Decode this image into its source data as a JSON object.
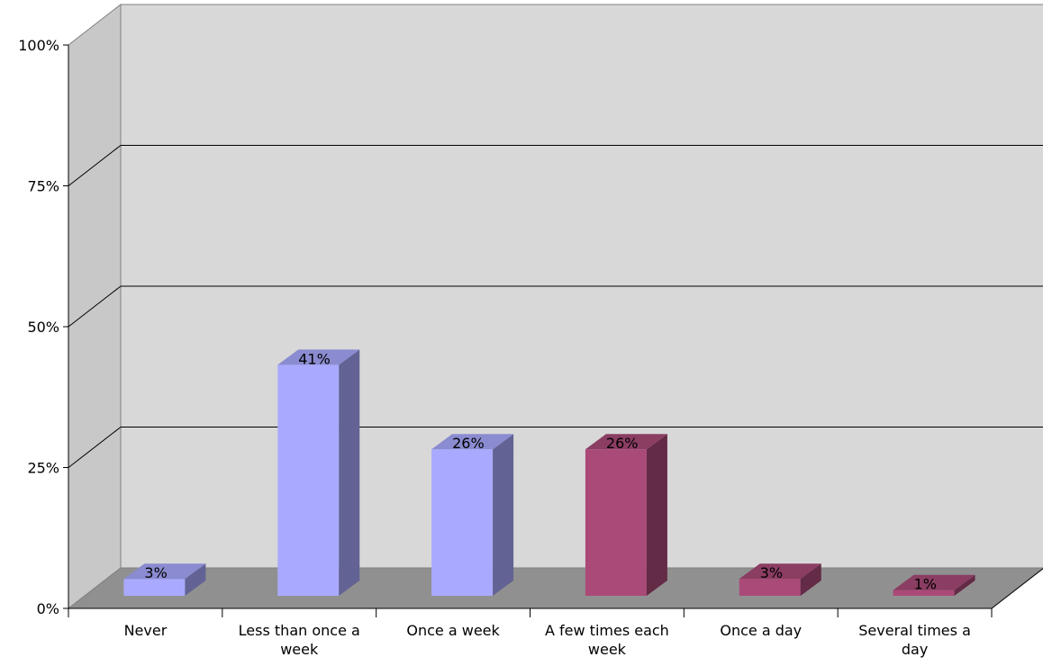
{
  "chart_data": {
    "type": "bar",
    "three_d": true,
    "title": "",
    "xlabel": "",
    "ylabel": "",
    "ylim": [
      0,
      100
    ],
    "y_ticks": [
      "0%",
      "25%",
      "50%",
      "75%",
      "100%"
    ],
    "y_tick_values": [
      0,
      25,
      50,
      75,
      100
    ],
    "grid": true,
    "legend": "none",
    "categories": [
      [
        "Never"
      ],
      [
        "Less than once a",
        "week"
      ],
      [
        "Once a week"
      ],
      [
        "A few times each",
        "week"
      ],
      [
        "Once a day"
      ],
      [
        "Several times a",
        "day"
      ]
    ],
    "values": [
      3,
      41,
      26,
      26,
      3,
      1
    ],
    "data_labels": [
      "3%",
      "41%",
      "26%",
      "26%",
      "3%",
      "1%"
    ],
    "bar_colors": [
      "#a9aaff",
      "#a9aaff",
      "#a9aaff",
      "#aa4a78",
      "#aa4a78",
      "#aa4a78"
    ],
    "colors": {
      "back_wall": "#d8d8d8",
      "side_wall": "#c8c8c8",
      "floor": "#909090",
      "grid": "#000000"
    }
  }
}
